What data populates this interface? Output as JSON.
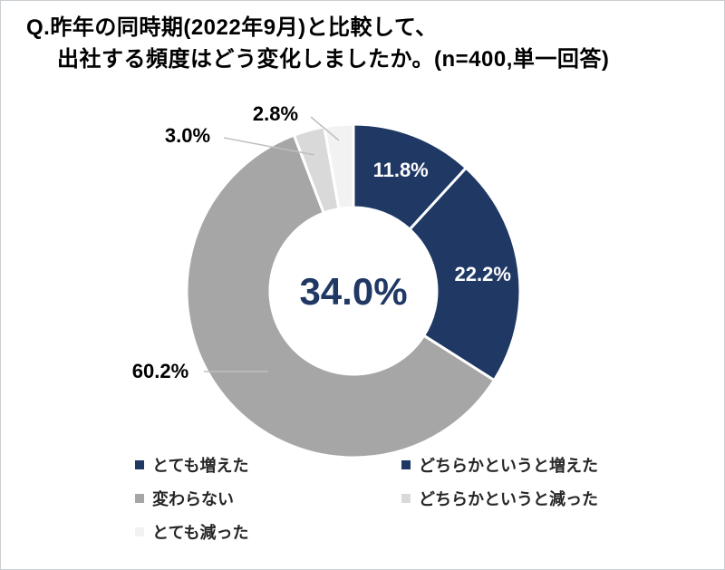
{
  "title": {
    "line1": "Q.昨年の同時期(2022年9月)と比較して、",
    "line2": "出社する頻度はどう変化しましたか。(n=400,単一回答)"
  },
  "chart_data": {
    "type": "pie",
    "subtype": "donut",
    "title": "Q.昨年の同時期(2022年9月)と比較して、出社する頻度はどう変化しましたか。(n=400,単一回答)",
    "sample_size": "n=400",
    "answer_type": "単一回答",
    "start_angle_deg": 0,
    "direction": "clockwise",
    "legend_position": "bottom",
    "center_label": "34.0%",
    "center_label_color": "#1F3864",
    "slices": [
      {
        "label": "とても増えた",
        "value": 11.8,
        "display": "11.8%",
        "color": "#1F3864",
        "label_placement": "inside"
      },
      {
        "label": "どちらかというと増えた",
        "value": 22.2,
        "display": "22.2%",
        "color": "#1F3864",
        "label_placement": "inside"
      },
      {
        "label": "変わらない",
        "value": 60.2,
        "display": "60.2%",
        "color": "#A6A6A6",
        "label_placement": "outside"
      },
      {
        "label": "どちらかというと減った",
        "value": 3.0,
        "display": "3.0%",
        "color": "#D9D9D9",
        "label_placement": "outside"
      },
      {
        "label": "とても減った",
        "value": 2.8,
        "display": "2.8%",
        "color": "#F2F2F2",
        "label_placement": "outside"
      }
    ]
  }
}
